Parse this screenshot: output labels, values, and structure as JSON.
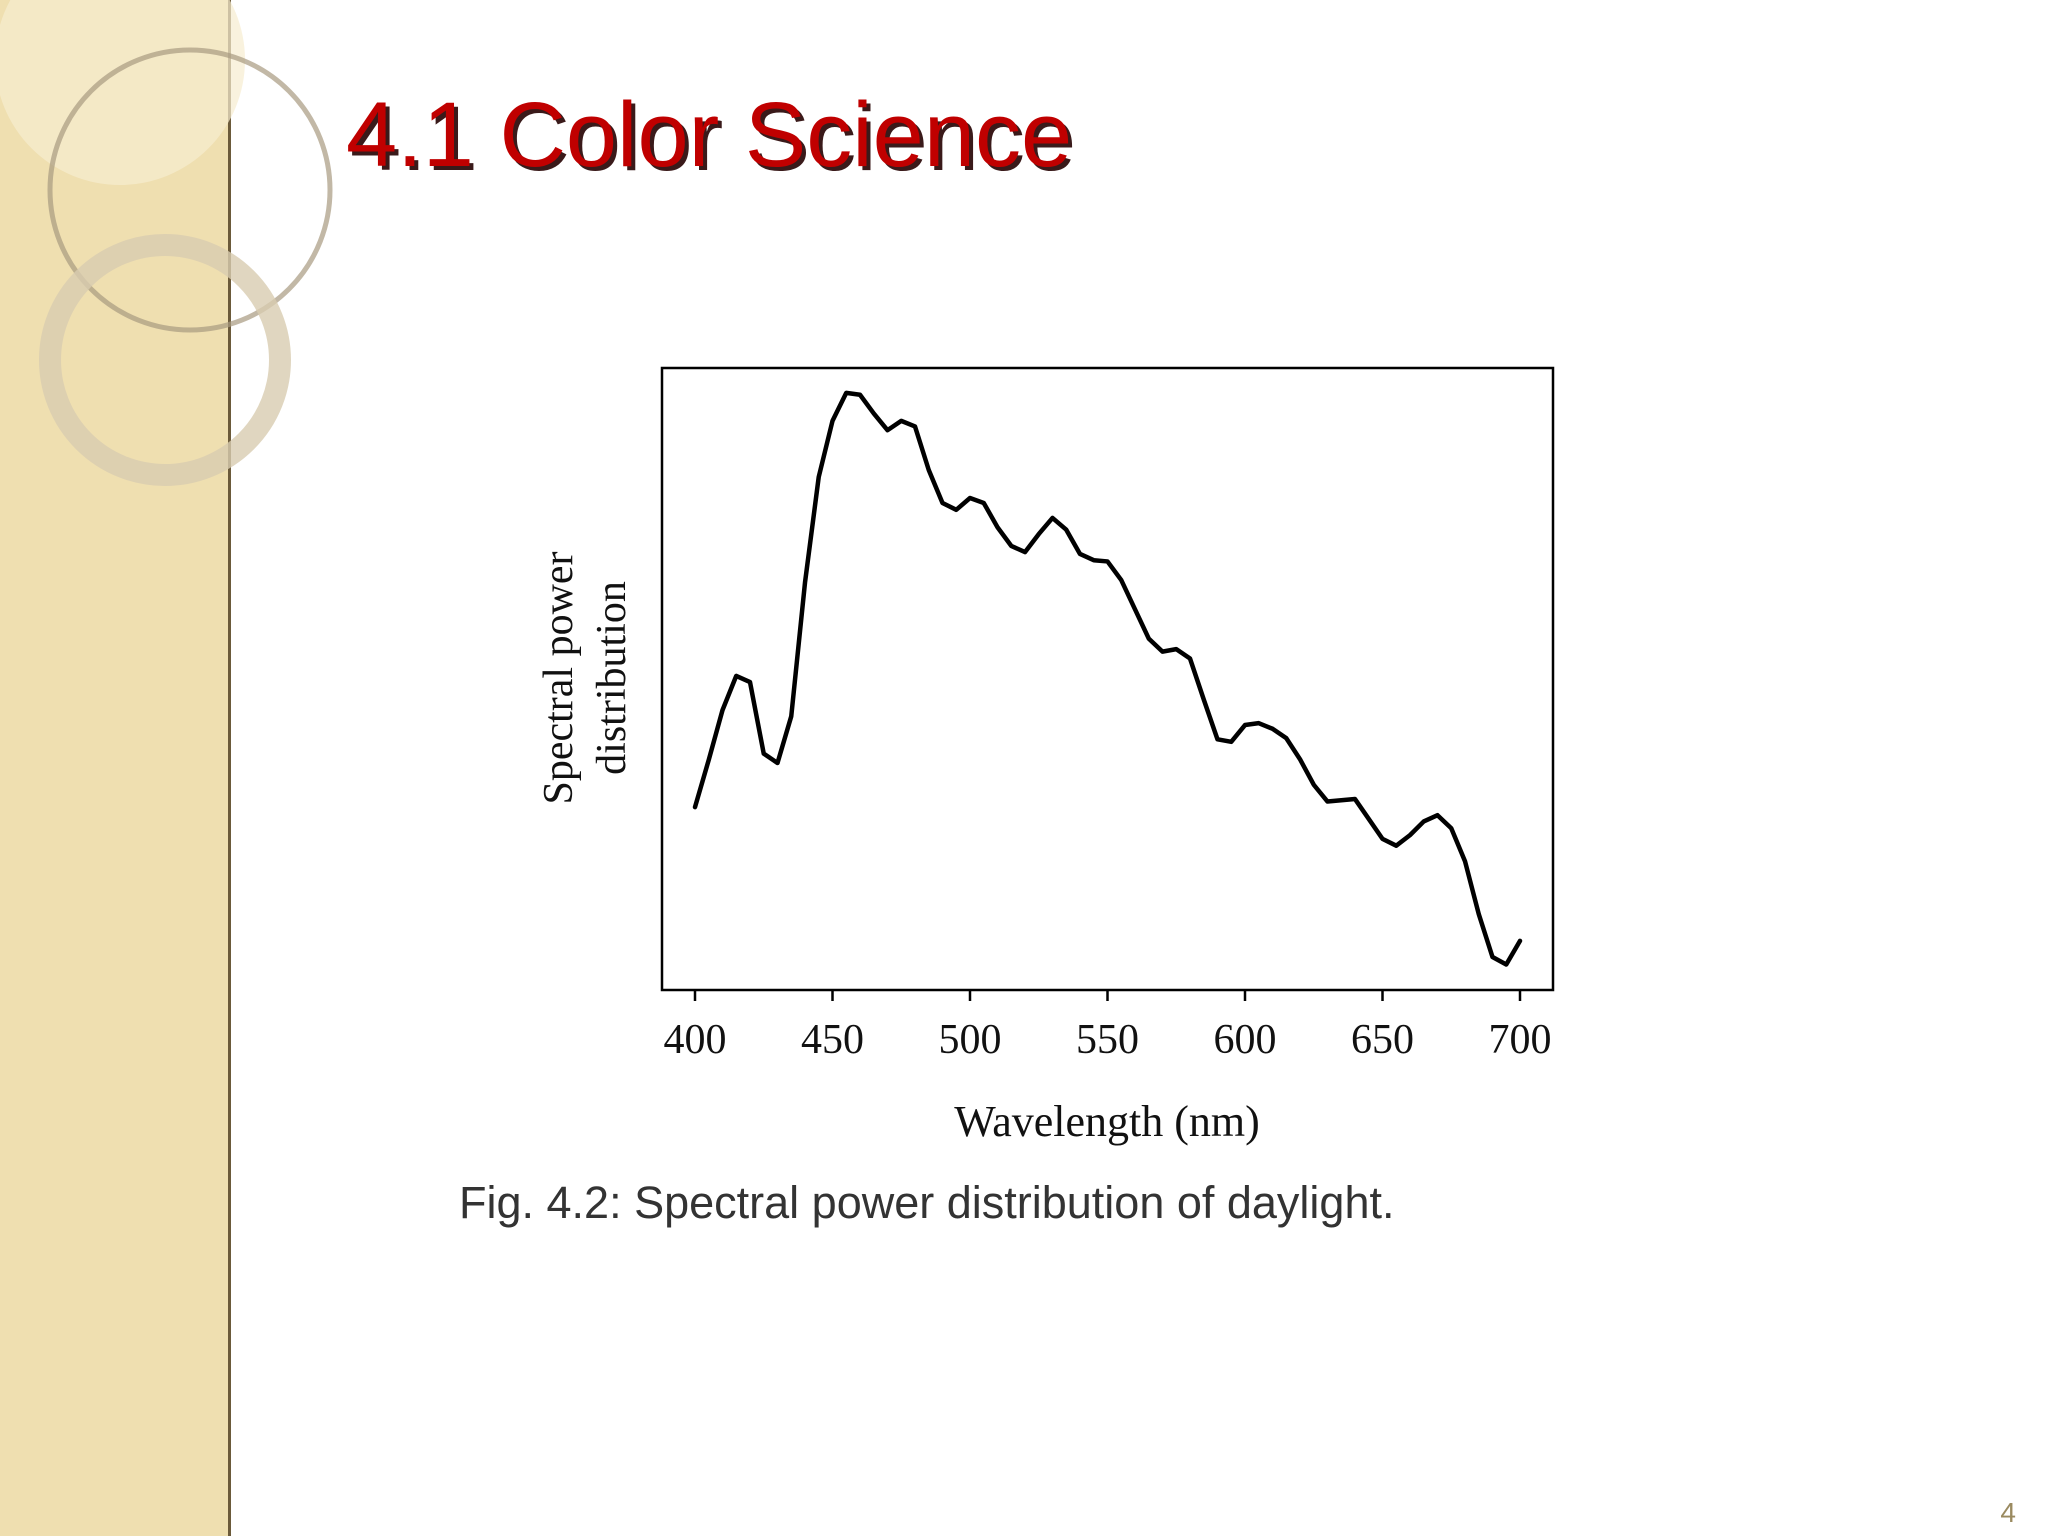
{
  "slide_title": "4.1 Color Science",
  "caption": "Fig. 4.2: Spectral power distribution of daylight.",
  "page_number": "4",
  "chart_data": {
    "type": "line",
    "xlabel": "Wavelength (nm)",
    "ylabel": [
      "Spectral power",
      "distribution"
    ],
    "x": [
      400,
      405,
      410,
      415,
      420,
      425,
      430,
      435,
      440,
      445,
      450,
      455,
      460,
      465,
      470,
      475,
      480,
      485,
      490,
      495,
      500,
      505,
      510,
      515,
      520,
      525,
      530,
      535,
      540,
      545,
      550,
      555,
      560,
      565,
      570,
      575,
      580,
      585,
      590,
      595,
      600,
      605,
      610,
      615,
      620,
      625,
      630,
      635,
      640,
      645,
      650,
      655,
      660,
      665,
      670,
      675,
      680,
      685,
      690,
      695,
      700
    ],
    "series": [
      {
        "name": "Daylight",
        "color": "#000000",
        "values": [
          29.4,
          37,
          45,
          50.5,
          49.5,
          38,
          36.5,
          44,
          65.5,
          82.5,
          91.5,
          96,
          95.7,
          92.7,
          90,
          91.5,
          90.6,
          83.6,
          78.3,
          77.2,
          79.1,
          78.3,
          74.4,
          71.4,
          70.4,
          73.3,
          75.9,
          74,
          70.1,
          69.1,
          68.9,
          65.9,
          61.2,
          56.5,
          54.4,
          54.8,
          53.3,
          46.7,
          40.3,
          39.9,
          42.6,
          42.9,
          42,
          40.5,
          37.1,
          33,
          30.3,
          30.5,
          30.7,
          27.5,
          24.3,
          23.2,
          24.9,
          27.1,
          28.1,
          26,
          20.7,
          12.2,
          5.3,
          4.1,
          7.9
        ]
      }
    ],
    "xlim": [
      388,
      712
    ],
    "xticks": [
      400,
      450,
      500,
      550,
      600,
      650,
      700
    ],
    "ylim": [
      0,
      100
    ]
  }
}
